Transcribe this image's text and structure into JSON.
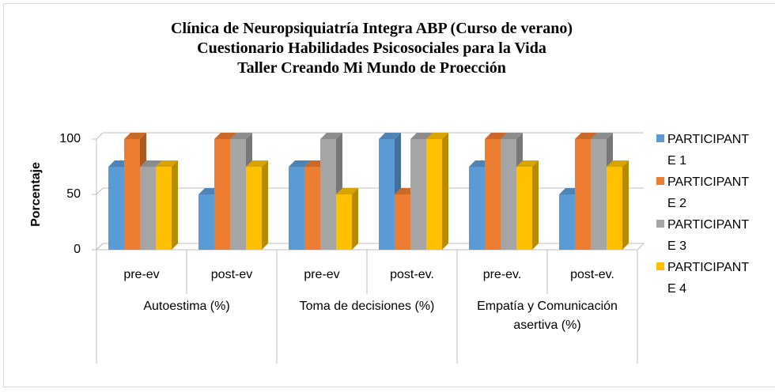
{
  "chart_data": {
    "type": "bar",
    "title": [
      "Clínica de Neuropsiquiatría Integra ABP (Curso de verano)",
      "Cuestionario Habilidades Psicosociales para la Vida",
      "Taller Creando Mi Mundo de Proección"
    ],
    "ylabel": "Porcentaje",
    "categories": [
      "pre-ev",
      "post-ev",
      "pre-ev",
      "post-ev.",
      "pre-ev.",
      "post-ev."
    ],
    "groups": [
      "Autoestima (%)",
      "Toma de decisiones (%)",
      "Empatía y Comunicación asertiva (%)"
    ],
    "series": [
      {
        "name": "PARTICIPANTE 1",
        "color": "#5b9bd5",
        "values": [
          75,
          50,
          75,
          100,
          75,
          50
        ]
      },
      {
        "name": "PARTICIPANTE 2",
        "color": "#ed7d31",
        "values": [
          100,
          100,
          75,
          50,
          100,
          100
        ]
      },
      {
        "name": "PARTICIPANTE 3",
        "color": "#a5a5a5",
        "values": [
          75,
          100,
          100,
          100,
          100,
          100
        ]
      },
      {
        "name": "PARTICIPANTE 4",
        "color": "#ffc000",
        "values": [
          75,
          75,
          50,
          100,
          75,
          75
        ]
      }
    ],
    "ylim": [
      0,
      100
    ],
    "yticks": [
      0,
      50,
      100
    ],
    "grid": true,
    "legend": "right"
  }
}
